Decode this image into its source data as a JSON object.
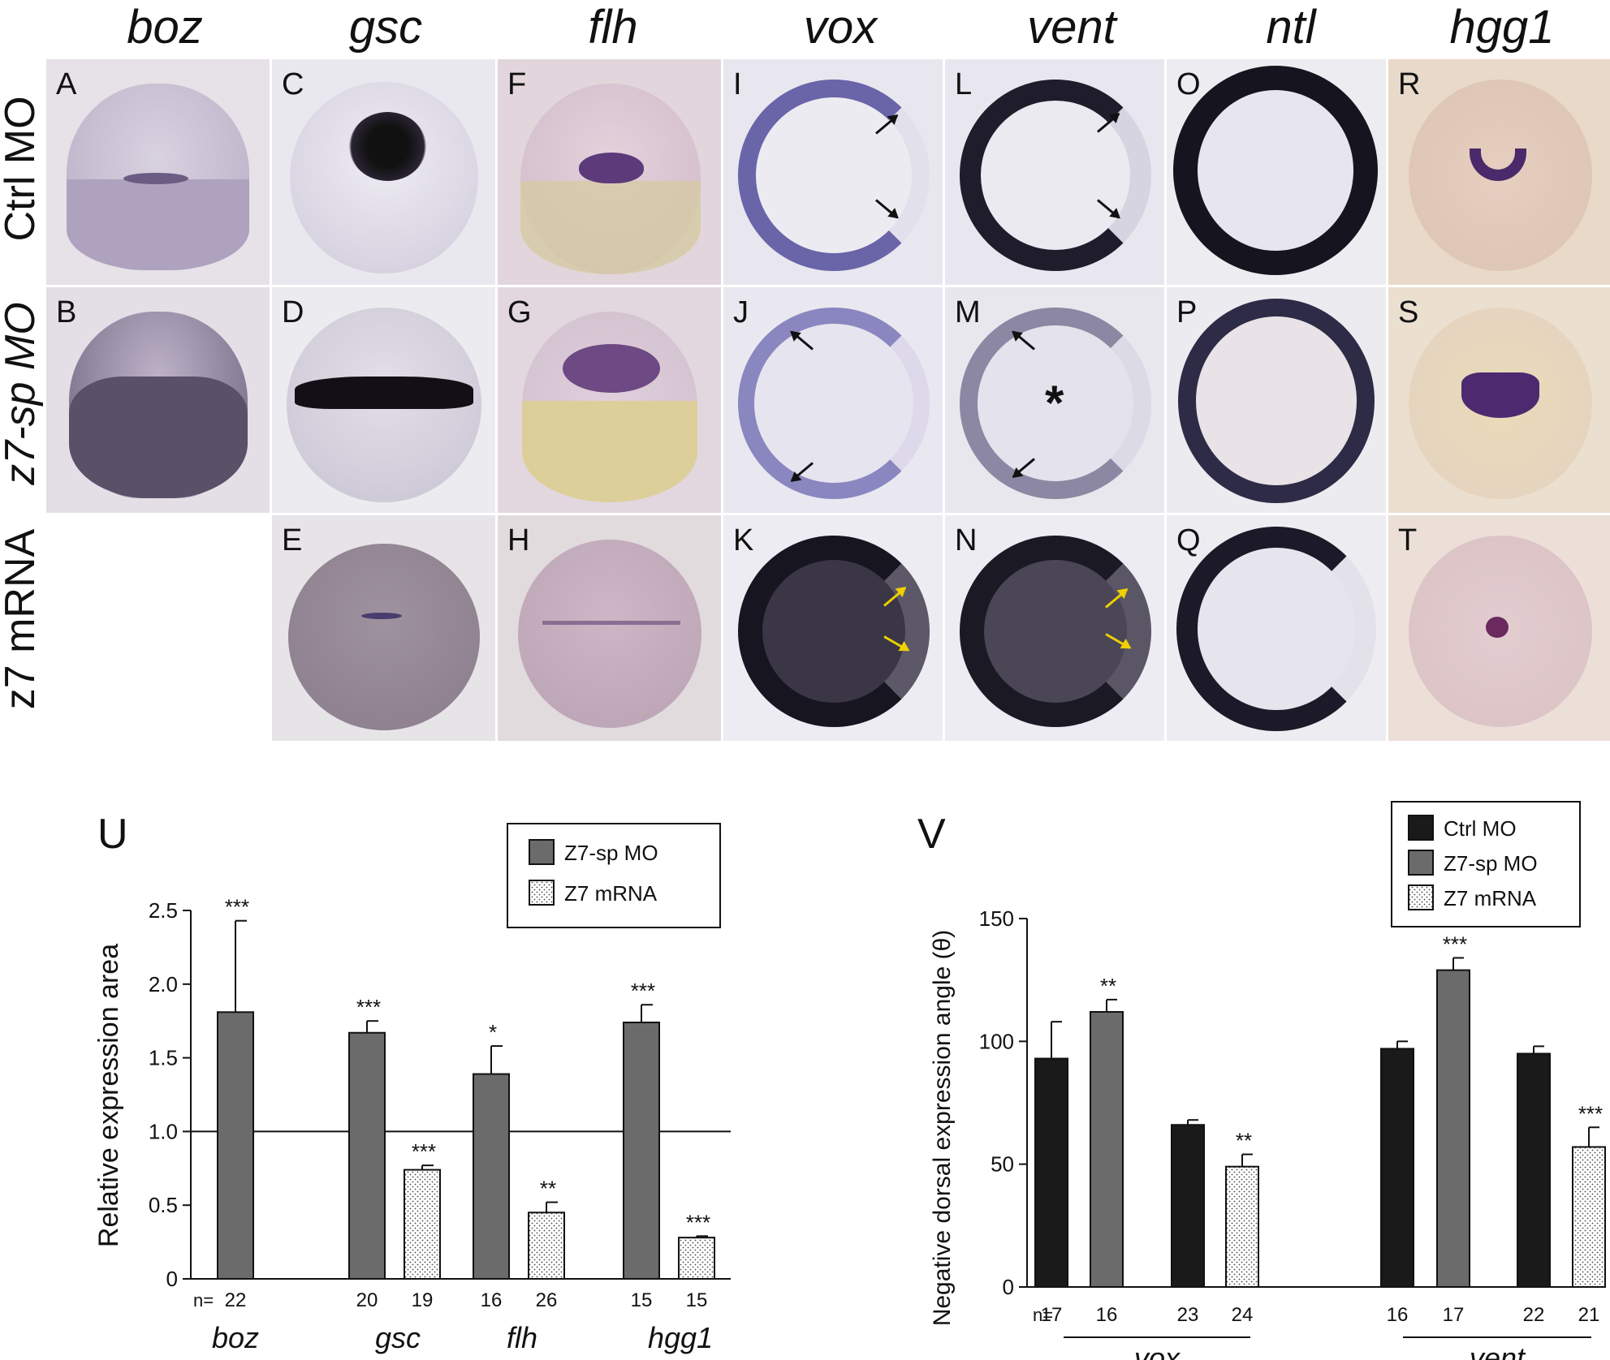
{
  "genes": [
    "boz",
    "gsc",
    "flh",
    "vox",
    "vent",
    "ntl",
    "hgg1"
  ],
  "rows": [
    "Ctrl MO",
    "z7-sp MO",
    "z7 mRNA"
  ],
  "panels": {
    "A": "A",
    "B": "B",
    "C": "C",
    "D": "D",
    "E": "E",
    "F": "F",
    "G": "G",
    "H": "H",
    "I": "I",
    "J": "J",
    "K": "K",
    "L": "L",
    "M": "M",
    "N": "N",
    "O": "O",
    "P": "P",
    "Q": "Q",
    "R": "R",
    "S": "S",
    "T": "T"
  },
  "asterisk": "*",
  "colors": {
    "stain_dark": "#1d1a2e",
    "stain_purple": "#4a3a78",
    "embryo_bg": "#d9cfe0",
    "yolk": "#e3d6b0",
    "bar_dark": "#1a1a1a",
    "bar_gray": "#6b6b6b",
    "arrow_yellow": "#f0d000"
  },
  "chart_data": [
    {
      "type": "bar",
      "panel_label": "U",
      "ylabel": "Relative expression area",
      "ylim": [
        0,
        2.5
      ],
      "yticks": [
        "0",
        "0.5",
        "1.0",
        "1.5",
        "2.0",
        "2.5"
      ],
      "reference_line": 1.0,
      "categories": [
        "boz",
        "gsc",
        "flh",
        "hgg1"
      ],
      "legend": [
        "Z7-sp MO",
        "Z7 mRNA"
      ],
      "n_prefix": "n=",
      "series": [
        {
          "name": "Z7-sp MO",
          "values": [
            1.81,
            1.67,
            1.39,
            1.74
          ],
          "errors": [
            0.62,
            0.08,
            0.19,
            0.12
          ],
          "sig": [
            "***",
            "***",
            "*",
            "***"
          ],
          "n": [
            "22",
            "20",
            "16",
            "15"
          ]
        },
        {
          "name": "Z7 mRNA",
          "values": [
            null,
            0.74,
            0.45,
            0.28
          ],
          "errors": [
            null,
            0.03,
            0.07,
            0.01
          ],
          "sig": [
            null,
            "***",
            "**",
            "***"
          ],
          "n": [
            null,
            "19",
            "26",
            "15"
          ]
        }
      ]
    },
    {
      "type": "bar",
      "panel_label": "V",
      "ylabel": "Negative dorsal expression angle (θ)",
      "ylim": [
        0,
        150
      ],
      "yticks": [
        "0",
        "50",
        "100",
        "150"
      ],
      "categories": [
        "vox",
        "vent"
      ],
      "legend": [
        "Ctrl MO",
        "Z7-sp MO",
        "Z7 mRNA"
      ],
      "n_prefix": "n=",
      "groups": [
        {
          "gene": "vox",
          "bars": [
            {
              "series": "Ctrl MO",
              "value": 93,
              "error": 15,
              "sig": "",
              "n": "17"
            },
            {
              "series": "Z7-sp MO",
              "value": 112,
              "error": 5,
              "sig": "**",
              "n": "16"
            },
            {
              "series": "Ctrl MO",
              "value": 66,
              "error": 2,
              "sig": "",
              "n": "23"
            },
            {
              "series": "Z7 mRNA",
              "value": 49,
              "error": 5,
              "sig": "**",
              "n": "24"
            }
          ]
        },
        {
          "gene": "vent",
          "bars": [
            {
              "series": "Ctrl MO",
              "value": 97,
              "error": 3,
              "sig": "",
              "n": "16"
            },
            {
              "series": "Z7-sp MO",
              "value": 129,
              "error": 5,
              "sig": "***",
              "n": "17"
            },
            {
              "series": "Ctrl MO",
              "value": 95,
              "error": 3,
              "sig": "",
              "n": "22"
            },
            {
              "series": "Z7 mRNA",
              "value": 57,
              "error": 8,
              "sig": "***",
              "n": "21"
            }
          ]
        }
      ]
    }
  ]
}
